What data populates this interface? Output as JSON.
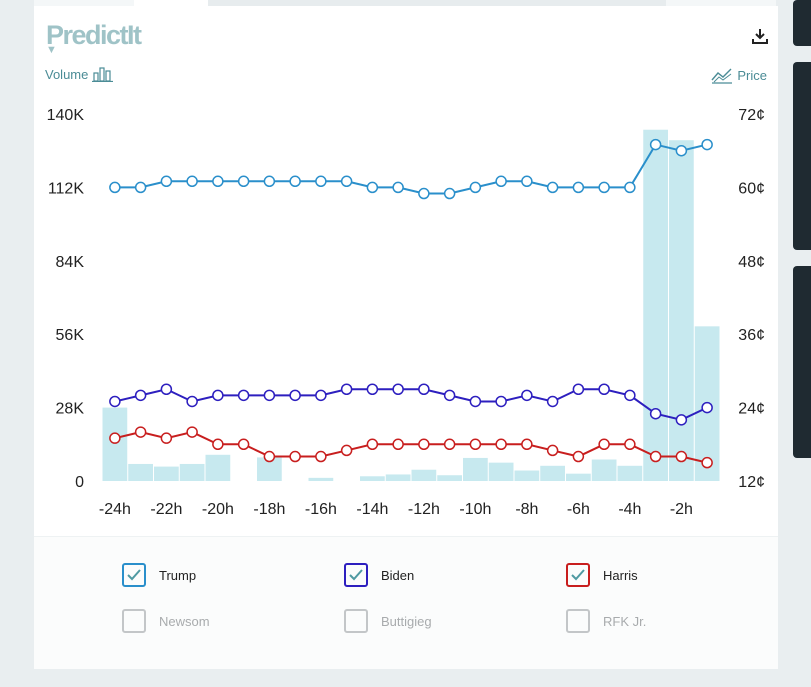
{
  "brand": {
    "logo_text": "PredictIt"
  },
  "toolbar": {
    "volume_label": "Volume",
    "price_label": "Price",
    "download_icon": "download-icon",
    "volume_icon": "bar-chart-icon",
    "price_icon": "line-chart-icon"
  },
  "chart_data": {
    "type": "line+bar",
    "title": "",
    "x": [
      "-24h",
      "-23h",
      "-22h",
      "-21h",
      "-20h",
      "-19h",
      "-18h",
      "-17h",
      "-16h",
      "-15h",
      "-14h",
      "-13h",
      "-12h",
      "-11h",
      "-10h",
      "-9h",
      "-8h",
      "-7h",
      "-6h",
      "-5h",
      "-4h",
      "-3h",
      "-2h",
      "-1h"
    ],
    "x_tick_labels": [
      "-24h",
      "-22h",
      "-20h",
      "-18h",
      "-16h",
      "-14h",
      "-12h",
      "-10h",
      "-8h",
      "-6h",
      "-4h",
      "-2h"
    ],
    "left_axis": {
      "label": "Volume",
      "range": [
        0,
        140000
      ],
      "tick_labels": [
        "0",
        "28K",
        "56K",
        "84K",
        "112K",
        "140K"
      ]
    },
    "right_axis": {
      "label": "Price",
      "range": [
        12,
        72
      ],
      "tick_labels": [
        "12¢",
        "24¢",
        "36¢",
        "48¢",
        "60¢",
        "72¢"
      ]
    },
    "volume": {
      "name": "Volume",
      "color": "#c7e9ef",
      "values": [
        28000,
        6500,
        5500,
        6500,
        10000,
        0,
        9000,
        0,
        1200,
        0,
        1800,
        2500,
        4300,
        2200,
        8800,
        7000,
        4000,
        5800,
        2800,
        8200,
        5800,
        134000,
        130000,
        59000
      ]
    },
    "series": [
      {
        "name": "Trump",
        "color": "#2a8fcb",
        "values": [
          60,
          60,
          61,
          61,
          61,
          61,
          61,
          61,
          61,
          61,
          60,
          60,
          59,
          59,
          60,
          61,
          61,
          60,
          60,
          60,
          60,
          67,
          66,
          67
        ]
      },
      {
        "name": "Biden",
        "color": "#2d1fbf",
        "values": [
          25,
          26,
          27,
          25,
          26,
          26,
          26,
          26,
          26,
          27,
          27,
          27,
          27,
          26,
          25,
          25,
          26,
          25,
          27,
          27,
          26,
          23,
          22,
          24
        ]
      },
      {
        "name": "Harris",
        "color": "#c81e1e",
        "values": [
          19,
          20,
          19,
          20,
          18,
          18,
          16,
          16,
          16,
          17,
          18,
          18,
          18,
          18,
          18,
          18,
          18,
          17,
          16,
          18,
          18,
          16,
          16,
          15
        ]
      }
    ]
  },
  "legend": {
    "items": [
      {
        "label": "Trump",
        "checked": true,
        "color": "#2a8fcb"
      },
      {
        "label": "Biden",
        "checked": true,
        "color": "#2d1fbf"
      },
      {
        "label": "Harris",
        "checked": true,
        "color": "#c81e1e"
      },
      {
        "label": "Newsom",
        "checked": false,
        "color": "#bbbbbb"
      },
      {
        "label": "Buttigieg",
        "checked": false,
        "color": "#bbbbbb"
      },
      {
        "label": "RFK Jr.",
        "checked": false,
        "color": "#bbbbbb"
      }
    ]
  }
}
